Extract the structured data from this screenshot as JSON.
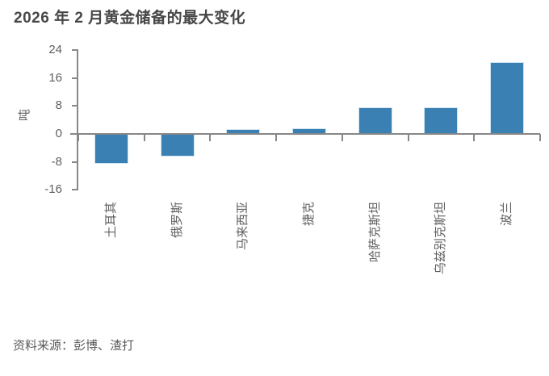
{
  "title": "2026 年 2 月黄金储备的最大变化",
  "source": "资料来源：彭博、渣打",
  "chart_data": {
    "type": "bar",
    "title": "2026 年 2 月黄金储备的最大变化",
    "ylabel": "吨",
    "xlabel": "",
    "categories": [
      "土耳其",
      "俄罗斯",
      "马来西亚",
      "捷克",
      "哈萨克斯坦",
      "乌兹别克斯坦",
      "波兰"
    ],
    "values": [
      -8.4,
      -6.3,
      1.4,
      1.7,
      7.5,
      7.6,
      20.4
    ],
    "yticks": [
      24,
      16,
      8,
      0,
      -8,
      -16
    ],
    "ylim": [
      -16,
      24
    ],
    "grid": false,
    "legend": "none",
    "bar_color": "#3a80b2",
    "source": "资料来源：彭博、渣打"
  },
  "colors": {
    "bar": "#3a80b2",
    "bar_edge": "#cfe3f2",
    "axis": "#878787",
    "tick_text": "#5f5f5f",
    "title_text": "#474747"
  }
}
